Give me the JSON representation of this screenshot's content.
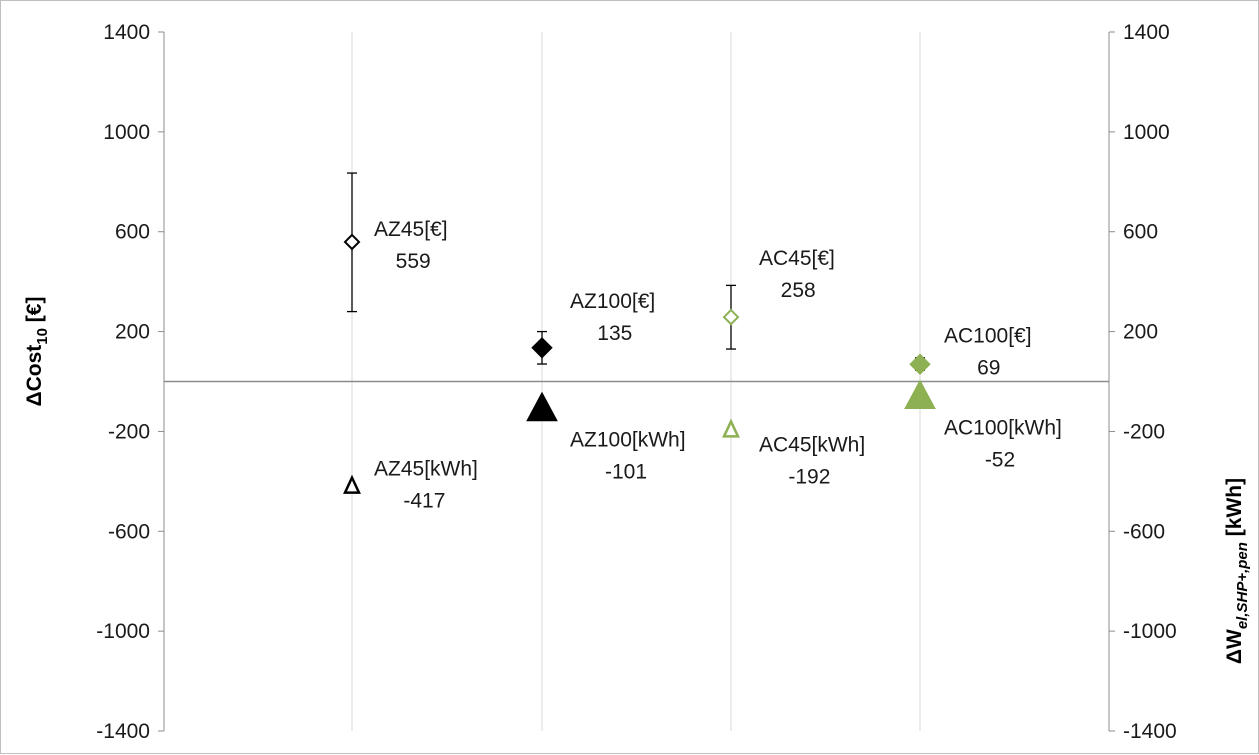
{
  "chart_data": {
    "type": "scatter",
    "title": "",
    "xlabel": "",
    "ylabel": "ΔCost10 [€]",
    "ylabel_parts": {
      "main": "ΔCost",
      "sub": "10",
      "unit": " [€]"
    },
    "y2label": "ΔWel,SHP+,pen [kWh]",
    "y2label_parts": {
      "main": "ΔW",
      "sub": "el,SHP+,pen",
      "unit": " [kWh]"
    },
    "ylim": [
      -1400,
      1400
    ],
    "y2lim": [
      -1400,
      1400
    ],
    "yticks": [
      "1400",
      "1000",
      "600",
      "200",
      "-200",
      "-600",
      "-1000",
      "-1400"
    ],
    "y2ticks": [
      "1400",
      "1000",
      "600",
      "200",
      "-200",
      "-600",
      "-1000",
      "-1400"
    ],
    "categories": [
      "AZ45",
      "AZ100",
      "AC45",
      "AC100"
    ],
    "grid": "vertical",
    "colors": {
      "black": "#000000",
      "green": "#8db053",
      "grid": "#d9d9d9",
      "axis": "#8c8c8c"
    },
    "series": [
      {
        "name": "AZ45[€]",
        "axis": "left",
        "marker": "diamond-open",
        "color": "#000000",
        "category_index": 0,
        "value": 559,
        "err_low": 280,
        "err_high": 835,
        "label_line1": "AZ45[€]",
        "label_line2": "559",
        "label_pos": "right-upper"
      },
      {
        "name": "AZ45[kWh]",
        "axis": "right",
        "marker": "triangle-open",
        "color": "#000000",
        "category_index": 0,
        "value": -417,
        "label_line1": "AZ45[kWh]",
        "label_line2": "-417",
        "label_pos": "right-upper"
      },
      {
        "name": "AZ100[€]",
        "axis": "left",
        "marker": "diamond-filled",
        "color": "#000000",
        "category_index": 1,
        "value": 135,
        "err_low": 70,
        "err_high": 200,
        "label_line1": "AZ100[€]",
        "label_line2": "135",
        "label_pos": "right-upper"
      },
      {
        "name": "AZ100[kWh]",
        "axis": "right",
        "marker": "triangle-filled-large",
        "color": "#000000",
        "category_index": 1,
        "value": -101,
        "label_line1": "AZ100[kWh]",
        "label_line2": "-101",
        "label_pos": "right-lower"
      },
      {
        "name": "AC45[€]",
        "axis": "left",
        "marker": "diamond-open",
        "color": "#8db053",
        "category_index": 2,
        "value": 258,
        "err_low": 130,
        "err_high": 385,
        "label_line1": "AC45[€]",
        "label_line2": "258",
        "label_pos": "right-upper"
      },
      {
        "name": "AC45[kWh]",
        "axis": "right",
        "marker": "triangle-open",
        "color": "#8db053",
        "category_index": 2,
        "value": -192,
        "label_line1": "AC45[kWh]",
        "label_line2": "-192",
        "label_pos": "right-lower"
      },
      {
        "name": "AC100[€]",
        "axis": "left",
        "marker": "diamond-filled",
        "color": "#8db053",
        "category_index": 3,
        "value": 69,
        "err_low": 45,
        "err_high": 95,
        "label_line1": "AC100[€]",
        "label_line2": "69",
        "label_pos": "right-upper"
      },
      {
        "name": "AC100[kWh]",
        "axis": "right",
        "marker": "triangle-filled-large",
        "color": "#8db053",
        "category_index": 3,
        "value": -52,
        "label_line1": "AC100[kWh]",
        "label_line2": "-52",
        "label_pos": "right-lower"
      }
    ]
  }
}
